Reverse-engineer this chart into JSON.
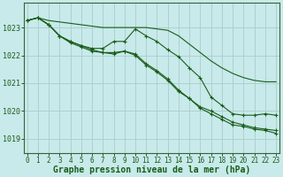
{
  "background_color": "#c8eaea",
  "grid_color": "#aacccc",
  "line_color": "#1a5c1a",
  "marker_color": "#1a5c1a",
  "xlabel": "Graphe pression niveau de la mer (hPa)",
  "xlabel_fontsize": 7,
  "tick_fontsize": 6,
  "ylim": [
    1018.5,
    1023.9
  ],
  "yticks": [
    1019,
    1020,
    1021,
    1022,
    1023
  ],
  "xticks": [
    0,
    1,
    2,
    3,
    4,
    5,
    6,
    7,
    8,
    9,
    10,
    11,
    12,
    13,
    14,
    15,
    16,
    17,
    18,
    19,
    20,
    21,
    22,
    23
  ],
  "series1_nomark": [
    1023.25,
    1023.35,
    1023.25,
    1023.2,
    1023.15,
    1023.1,
    1023.05,
    1023.0,
    1023.0,
    1023.0,
    1023.0,
    1023.0,
    1022.95,
    1022.9,
    1022.7,
    1022.4,
    1022.1,
    1021.8,
    1021.55,
    1021.35,
    1021.2,
    1021.1,
    1021.05,
    1021.05
  ],
  "series2_mark": [
    1023.25,
    1023.35,
    1023.1,
    1022.7,
    1022.5,
    1022.35,
    1022.25,
    1022.25,
    1022.5,
    1022.5,
    1022.95,
    1022.7,
    1022.5,
    1022.2,
    1021.95,
    1021.55,
    1021.2,
    1020.5,
    1020.2,
    1019.9,
    1019.85,
    1019.85,
    1019.9,
    1019.85
  ],
  "series3_mark": [
    1023.25,
    1023.35,
    1023.1,
    1022.7,
    1022.45,
    1022.3,
    1022.15,
    1022.1,
    1022.1,
    1022.15,
    1022.05,
    1021.7,
    1021.45,
    1021.15,
    1020.75,
    1020.45,
    1020.1,
    1019.9,
    1019.7,
    1019.5,
    1019.45,
    1019.35,
    1019.3,
    1019.2
  ],
  "series4_mark": [
    1023.25,
    1023.35,
    1023.1,
    1022.7,
    1022.5,
    1022.35,
    1022.2,
    1022.1,
    1022.05,
    1022.15,
    1022.0,
    1021.65,
    1021.4,
    1021.1,
    1020.7,
    1020.45,
    1020.15,
    1020.0,
    1019.8,
    1019.6,
    1019.5,
    1019.4,
    1019.35,
    1019.3
  ]
}
